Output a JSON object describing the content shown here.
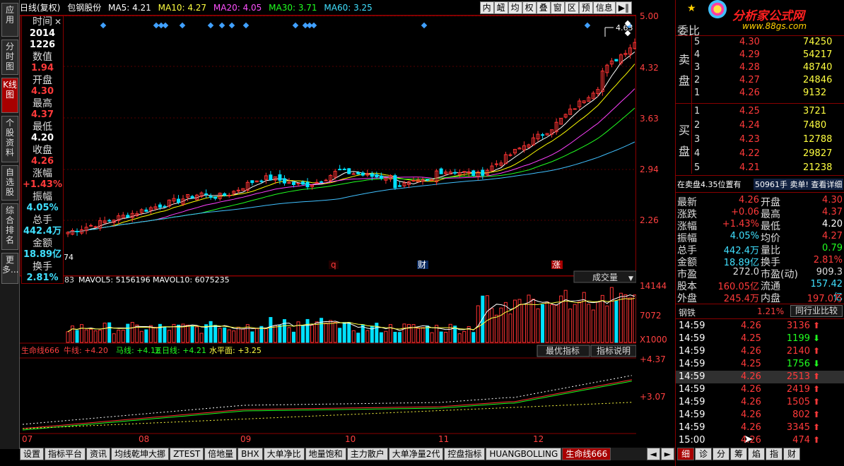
{
  "left_tabs": [
    {
      "label": "应用"
    },
    {
      "label": "分时图"
    },
    {
      "label": "K线图"
    },
    {
      "label": "个股资料"
    },
    {
      "label": "自选股"
    },
    {
      "label": "综合排名"
    },
    {
      "label": "更多..."
    }
  ],
  "header": {
    "period": "日线(复权)",
    "stock_name": "包钢股份",
    "ma5": "MA5: 4.21",
    "ma10": "MA10: 4.27",
    "ma20": "MA20: 4.05",
    "ma30": "MA30: 3.71",
    "ma60": "MA60: 3.25",
    "buttons": [
      "内",
      "衄",
      "均",
      "权",
      "叠",
      "窗",
      "区",
      "预",
      "信息",
      "▶‖"
    ]
  },
  "info": [
    {
      "label": "时间",
      "v1": "2014",
      "v2": "1226"
    },
    {
      "label": "数值",
      "value": "1.94"
    },
    {
      "label": "开盘",
      "value": "4.30"
    },
    {
      "label": "最高",
      "value": "4.37"
    },
    {
      "label": "最低",
      "value": "4.20"
    },
    {
      "label": "收盘",
      "value": "4.26"
    },
    {
      "label": "涨幅",
      "value": "+1.43%"
    },
    {
      "label": "振幅",
      "value": "4.05%"
    },
    {
      "label": "总手",
      "value": "442.4万"
    },
    {
      "label": "金额",
      "value": "18.89亿"
    },
    {
      "label": "换手",
      "value": "2.81%"
    }
  ],
  "price_axis": [
    "5.00",
    "4.32",
    "3.63",
    "2.94",
    "2.26"
  ],
  "peak_label": "4.63",
  "low_label": "74",
  "markers": [
    "q",
    "财",
    "涨"
  ],
  "vol_header": {
    "prefix": "83",
    "mavol5": "MAVOL5: 5156196",
    "mavol10": "MAVOL10: 6075235",
    "dropdown": "成交量"
  },
  "vol_axis": [
    "14144",
    "7072",
    "X1000"
  ],
  "ind_header": {
    "name": "生命线666",
    "niu": "牛线: +4.20",
    "ma": "马线: +4.12",
    "wu": "五日线: +4.21",
    "shui": "水平面: +3.25",
    "btn1": "最优指标",
    "btn2": "指标说明"
  },
  "ind_axis": [
    "+4.37",
    "+3.07"
  ],
  "months": [
    "07",
    "08",
    "09",
    "10",
    "11",
    "12"
  ],
  "bottom_tabs": [
    "设置",
    "指标平台",
    "资讯",
    "均线乾坤大挪",
    "ZTEST",
    "倍地量",
    "BHX",
    "大单净比",
    "地量饱和",
    "主力散户",
    "大单净量2代",
    "控盘指标",
    "HUANGBOLLING",
    "生命线666"
  ],
  "logo": {
    "text": "分析家公式网",
    "url": "www.88gs.com"
  },
  "order_book": {
    "title": "委比",
    "sell": [
      {
        "lvl": "5",
        "price": "4.30",
        "vol": "74250"
      },
      {
        "lvl": "4",
        "price": "4.29",
        "vol": "54217"
      },
      {
        "lvl": "3",
        "price": "4.28",
        "vol": "48740"
      },
      {
        "lvl": "2",
        "price": "4.27",
        "vol": "24846"
      },
      {
        "lvl": "1",
        "price": "4.26",
        "vol": "9132"
      }
    ],
    "buy": [
      {
        "lvl": "1",
        "price": "4.25",
        "vol": "3721"
      },
      {
        "lvl": "2",
        "price": "4.24",
        "vol": "7480"
      },
      {
        "lvl": "3",
        "price": "4.23",
        "vol": "12788"
      },
      {
        "lvl": "4",
        "price": "4.22",
        "vol": "29827"
      },
      {
        "lvl": "5",
        "price": "4.21",
        "vol": "21238"
      }
    ],
    "sell_label": "卖盘",
    "buy_label": "买盘"
  },
  "notice": {
    "left": "在卖盘4.35位置有",
    "right": "50961手 卖单! 查看详细"
  },
  "stats": [
    [
      "最新",
      "4.26",
      "开盘",
      "4.30"
    ],
    [
      "涨跌",
      "+0.06",
      "最高",
      "4.37"
    ],
    [
      "涨幅",
      "+1.43%",
      "最低",
      "4.20"
    ],
    [
      "振幅",
      "4.05%",
      "均价",
      "4.27"
    ],
    [
      "总手",
      "442.4万",
      "量比",
      "0.79"
    ],
    [
      "金额",
      "18.89亿",
      "换手",
      "2.81%"
    ],
    [
      "市盈",
      "272.0",
      "市盈(动)",
      "909.3"
    ],
    [
      "股本",
      "160.05亿",
      "流通",
      "157.42亿"
    ],
    [
      "外盘",
      "245.4万",
      "内盘",
      "197.0万"
    ]
  ],
  "industry": {
    "name": "钢铁",
    "pct": "1.21%",
    "btn": "同行业比较"
  },
  "ticks": [
    [
      "14:59",
      "4.26",
      "3136",
      "up"
    ],
    [
      "14:59",
      "4.25",
      "1199",
      "down"
    ],
    [
      "14:59",
      "4.26",
      "2140",
      "up"
    ],
    [
      "14:59",
      "4.25",
      "1756",
      "down"
    ],
    [
      "14:59",
      "4.26",
      "2513",
      "up"
    ],
    [
      "14:59",
      "4.26",
      "2419",
      "up"
    ],
    [
      "14:59",
      "4.26",
      "1505",
      "up"
    ],
    [
      "14:59",
      "4.26",
      "802",
      "up"
    ],
    [
      "14:59",
      "4.26",
      "3345",
      "up"
    ],
    [
      "15:00",
      "4.26",
      "474",
      "up"
    ]
  ],
  "right_tabs": [
    "细",
    "诊",
    "分",
    "筹",
    "焰",
    "指",
    "财"
  ],
  "colors": {
    "up": "#ff3333",
    "down": "#00e0ff",
    "ma5": "#ffffff",
    "ma10": "#ffff00",
    "ma20": "#ff40ff",
    "ma30": "#20ff20",
    "ma60": "#40c0ff"
  }
}
